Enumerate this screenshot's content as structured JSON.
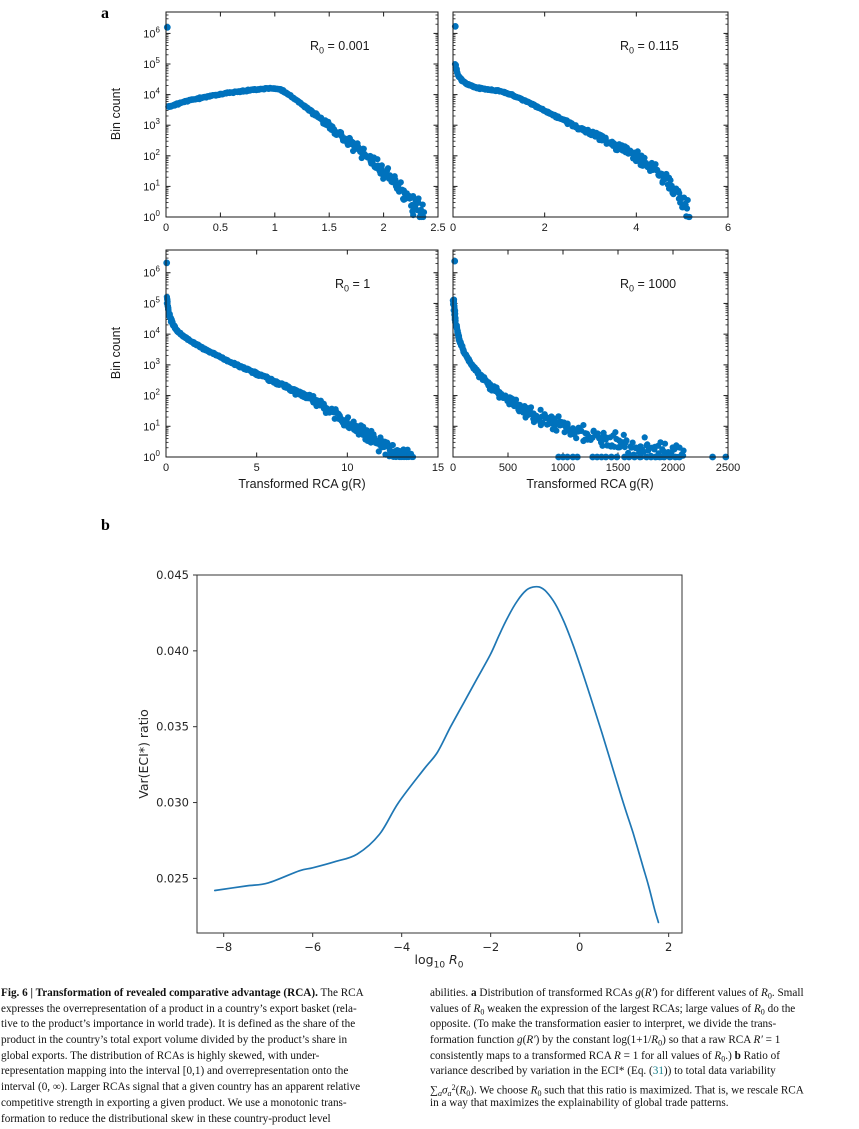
{
  "figure": {
    "panel_a_label": "a",
    "panel_b_label": "b"
  },
  "colors": {
    "scatter": "#0072BD",
    "line": "#1f77b4",
    "axis_a": "#1a1a1a",
    "axis_b": "#333333",
    "link": "#19808c"
  },
  "chart_data": [
    {
      "id": "a1",
      "type": "scatter",
      "ylabel": "Bin count",
      "annotation": [
        {
          "t": "R"
        },
        {
          "t": "0",
          "sub": 1
        },
        {
          "t": " = 0.001"
        }
      ],
      "xlim": [
        0,
        2.5
      ],
      "xticks": [
        {
          "v": 0,
          "l": "0"
        },
        {
          "v": 0.5,
          "l": "0.5"
        },
        {
          "v": 1,
          "l": "1"
        },
        {
          "v": 1.5,
          "l": "1.5"
        },
        {
          "v": 2,
          "l": "2"
        },
        {
          "v": 2.5,
          "l": "2.5"
        }
      ],
      "ylog_max": 6.7,
      "ydecades": [
        0,
        1,
        2,
        3,
        4,
        5,
        6
      ],
      "ytick_labels": true,
      "anchors": [
        [
          0.02,
          3.6
        ],
        [
          0.2,
          3.8
        ],
        [
          0.4,
          3.95
        ],
        [
          0.6,
          4.07
        ],
        [
          0.8,
          4.16
        ],
        [
          0.95,
          4.21
        ],
        [
          1.05,
          4.18
        ],
        [
          1.15,
          3.95
        ],
        [
          1.3,
          3.55
        ],
        [
          1.5,
          2.98
        ],
        [
          1.7,
          2.4
        ],
        [
          1.9,
          1.8
        ],
        [
          2.05,
          1.3
        ],
        [
          2.2,
          0.75
        ],
        [
          2.3,
          0.3
        ],
        [
          2.37,
          0.02
        ]
      ],
      "n": 400,
      "p": 1.0,
      "seed": 11,
      "xjit": 0.004,
      "jitter": {
        "base": 0.03,
        "grow": 0.12,
        "ref": 3.7
      },
      "extras": [
        [
          0.012,
          6.2
        ]
      ],
      "marker_r": 3.1
    },
    {
      "id": "a2",
      "type": "scatter",
      "annotation": [
        {
          "t": "R"
        },
        {
          "t": "0",
          "sub": 1
        },
        {
          "t": " = 0.115"
        }
      ],
      "xlim": [
        0,
        6
      ],
      "xticks": [
        {
          "v": 0,
          "l": "0"
        },
        {
          "v": 2,
          "l": "2"
        },
        {
          "v": 4,
          "l": "4"
        },
        {
          "v": 6,
          "l": "6"
        }
      ],
      "ylog_max": 6.7,
      "ydecades": [
        0,
        1,
        2,
        3,
        4,
        5,
        6
      ],
      "ytick_labels": false,
      "anchors": [
        [
          0.05,
          5.0
        ],
        [
          0.08,
          4.8
        ],
        [
          0.12,
          4.62
        ],
        [
          0.2,
          4.46
        ],
        [
          0.3,
          4.35
        ],
        [
          0.45,
          4.26
        ],
        [
          0.6,
          4.2
        ],
        [
          0.8,
          4.16
        ],
        [
          1.0,
          4.12
        ],
        [
          1.15,
          4.06
        ],
        [
          1.35,
          3.95
        ],
        [
          1.6,
          3.78
        ],
        [
          1.9,
          3.55
        ],
        [
          2.2,
          3.32
        ],
        [
          2.5,
          3.1
        ],
        [
          2.8,
          2.88
        ],
        [
          3.1,
          2.66
        ],
        [
          3.4,
          2.45
        ],
        [
          3.7,
          2.22
        ],
        [
          4.0,
          1.98
        ],
        [
          4.2,
          1.8
        ],
        [
          4.4,
          1.62
        ],
        [
          4.6,
          1.3
        ],
        [
          4.8,
          0.9
        ],
        [
          5.0,
          0.45
        ],
        [
          5.15,
          0.1
        ]
      ],
      "n": 400,
      "p": 1.25,
      "seed": 22,
      "xjit": 0.01,
      "jitter": {
        "base": 0.03,
        "grow": 0.12,
        "ref": 3.4
      },
      "extras": [
        [
          0.05,
          6.23
        ]
      ],
      "marker_r": 3.1
    },
    {
      "id": "a3",
      "type": "scatter",
      "ylabel": "Bin count",
      "xlabel": [
        {
          "t": "Transformed RCA g(R)"
        }
      ],
      "annotation": [
        {
          "t": "R"
        },
        {
          "t": "0",
          "sub": 1
        },
        {
          "t": " = 1"
        }
      ],
      "xlim": [
        0,
        15
      ],
      "xticks": [
        {
          "v": 0,
          "l": "0"
        },
        {
          "v": 5,
          "l": "5"
        },
        {
          "v": 10,
          "l": "10"
        },
        {
          "v": 15,
          "l": "15"
        }
      ],
      "ylog_max": 6.74,
      "ydecades": [
        0,
        1,
        2,
        3,
        4,
        5,
        6
      ],
      "ytick_labels": true,
      "anchors": [
        [
          0.04,
          5.2
        ],
        [
          0.08,
          4.95
        ],
        [
          0.15,
          4.7
        ],
        [
          0.25,
          4.5
        ],
        [
          0.4,
          4.3
        ],
        [
          0.6,
          4.12
        ],
        [
          0.85,
          3.98
        ],
        [
          1.1,
          3.88
        ],
        [
          1.5,
          3.72
        ],
        [
          2.0,
          3.55
        ],
        [
          2.5,
          3.4
        ],
        [
          3.0,
          3.25
        ],
        [
          3.5,
          3.1
        ],
        [
          4.0,
          2.97
        ],
        [
          4.5,
          2.85
        ],
        [
          5.0,
          2.72
        ],
        [
          5.5,
          2.58
        ],
        [
          6.0,
          2.45
        ],
        [
          6.5,
          2.32
        ],
        [
          7.0,
          2.18
        ],
        [
          7.5,
          2.05
        ],
        [
          8.0,
          1.9
        ],
        [
          8.5,
          1.72
        ],
        [
          9.0,
          1.52
        ],
        [
          9.5,
          1.3
        ],
        [
          10.0,
          1.1
        ],
        [
          10.5,
          0.92
        ],
        [
          11.0,
          0.75
        ],
        [
          11.5,
          0.55
        ],
        [
          12.0,
          0.35
        ],
        [
          12.5,
          0.18
        ],
        [
          13.0,
          0.05
        ],
        [
          13.6,
          0.0
        ]
      ],
      "n": 430,
      "p": 1.35,
      "seed": 33,
      "xjit": 0.03,
      "jitter": {
        "base": 0.035,
        "grow": 0.11,
        "ref": 3.0
      },
      "extras": [
        [
          0.04,
          6.32
        ]
      ],
      "marker_r": 3.1
    },
    {
      "id": "a4",
      "type": "scatter",
      "xlabel": [
        {
          "t": "Transformed RCA g(R)"
        }
      ],
      "annotation": [
        {
          "t": "R"
        },
        {
          "t": "0",
          "sub": 1
        },
        {
          "t": " = 1000"
        }
      ],
      "xlim": [
        0,
        2500
      ],
      "xticks": [
        {
          "v": 0,
          "l": "0"
        },
        {
          "v": 500,
          "l": "500"
        },
        {
          "v": 1000,
          "l": "1000"
        },
        {
          "v": 1500,
          "l": "1500"
        },
        {
          "v": 2000,
          "l": "2000"
        },
        {
          "v": 2500,
          "l": "2500"
        }
      ],
      "ylog_max": 6.74,
      "ydecades": [
        0,
        1,
        2,
        3,
        4,
        5,
        6
      ],
      "ytick_labels": false,
      "anchors": [
        [
          5,
          5.1
        ],
        [
          10,
          4.85
        ],
        [
          20,
          4.5
        ],
        [
          35,
          4.15
        ],
        [
          55,
          3.85
        ],
        [
          80,
          3.6
        ],
        [
          110,
          3.35
        ],
        [
          150,
          3.1
        ],
        [
          200,
          2.85
        ],
        [
          260,
          2.6
        ],
        [
          330,
          2.35
        ],
        [
          400,
          2.15
        ],
        [
          480,
          1.95
        ],
        [
          560,
          1.75
        ],
        [
          650,
          1.55
        ],
        [
          750,
          1.35
        ],
        [
          850,
          1.2
        ],
        [
          950,
          1.05
        ],
        [
          1100,
          0.85
        ],
        [
          1250,
          0.68
        ],
        [
          1400,
          0.52
        ],
        [
          1550,
          0.4
        ],
        [
          1700,
          0.28
        ],
        [
          1850,
          0.15
        ],
        [
          2000,
          0.05
        ],
        [
          2100,
          0.0
        ]
      ],
      "n": 340,
      "p": 2.0,
      "seed": 44,
      "xjit": 6,
      "jitter": {
        "base": 0.05,
        "grow": 0.14,
        "ref": 3.0
      },
      "extras": [
        [
          15,
          6.38
        ],
        [
          960,
          0
        ],
        [
          1000,
          0
        ],
        [
          1040,
          0
        ],
        [
          1090,
          0
        ],
        [
          1130,
          0
        ],
        [
          1270,
          0
        ],
        [
          1310,
          0
        ],
        [
          1350,
          0
        ],
        [
          1390,
          0
        ],
        [
          1440,
          0
        ],
        [
          1490,
          0
        ],
        [
          1560,
          0
        ],
        [
          1600,
          0
        ],
        [
          1650,
          0
        ],
        [
          1700,
          0
        ],
        [
          1760,
          0
        ],
        [
          1800,
          0
        ],
        [
          1840,
          0
        ],
        [
          1880,
          0
        ],
        [
          1920,
          0
        ],
        [
          1970,
          0
        ],
        [
          2020,
          0
        ],
        [
          2060,
          0
        ],
        [
          2360,
          0
        ],
        [
          2480,
          0
        ]
      ],
      "marker_r": 3.1
    },
    {
      "id": "b",
      "type": "line",
      "ylabel": "Var(ECI*) ratio",
      "xlabel": [
        {
          "t": "log"
        },
        {
          "t": "10",
          "sub": 1
        },
        {
          "t": " "
        },
        {
          "t": "R",
          "i": 1
        },
        {
          "t": "0",
          "sub": 1
        }
      ],
      "xlim": [
        -8.6,
        2.3
      ],
      "ylim": [
        0.0214,
        0.045
      ],
      "xticks": [
        {
          "v": -8,
          "l": "−8"
        },
        {
          "v": -6,
          "l": "−6"
        },
        {
          "v": -4,
          "l": "−4"
        },
        {
          "v": -2,
          "l": "−2"
        },
        {
          "v": 0,
          "l": "0"
        },
        {
          "v": 2,
          "l": "2"
        }
      ],
      "yticks": [
        {
          "v": 0.025,
          "l": "0.025"
        },
        {
          "v": 0.03,
          "l": "0.030"
        },
        {
          "v": 0.035,
          "l": "0.035"
        },
        {
          "v": 0.04,
          "l": "0.040"
        },
        {
          "v": 0.045,
          "l": "0.045"
        }
      ],
      "line": [
        [
          -8.2,
          0.0242
        ],
        [
          -7.5,
          0.0245
        ],
        [
          -7.0,
          0.0247
        ],
        [
          -6.3,
          0.0255
        ],
        [
          -6.0,
          0.0257
        ],
        [
          -5.5,
          0.0261
        ],
        [
          -5.0,
          0.0266
        ],
        [
          -4.5,
          0.0279
        ],
        [
          -4.07,
          0.03
        ],
        [
          -3.5,
          0.0322
        ],
        [
          -3.2,
          0.0333
        ],
        [
          -2.9,
          0.035
        ],
        [
          -2.6,
          0.0366
        ],
        [
          -2.3,
          0.0382
        ],
        [
          -2.0,
          0.0398
        ],
        [
          -1.8,
          0.0411
        ],
        [
          -1.6,
          0.0423
        ],
        [
          -1.4,
          0.0433
        ],
        [
          -1.2,
          0.044
        ],
        [
          -1.05,
          0.0442
        ],
        [
          -0.9,
          0.0442
        ],
        [
          -0.75,
          0.0439
        ],
        [
          -0.55,
          0.0431
        ],
        [
          -0.35,
          0.0419
        ],
        [
          -0.15,
          0.0404
        ],
        [
          0.05,
          0.0387
        ],
        [
          0.25,
          0.0369
        ],
        [
          0.5,
          0.0346
        ],
        [
          0.75,
          0.0322
        ],
        [
          1.0,
          0.0298
        ],
        [
          1.2,
          0.028
        ],
        [
          1.4,
          0.026
        ],
        [
          1.55,
          0.0245
        ],
        [
          1.68,
          0.023
        ],
        [
          1.77,
          0.0221
        ]
      ],
      "line_width": 1.7
    }
  ],
  "caption": {
    "left_lines": [
      [
        {
          "t": "Fig. 6 | Transformation of revealed comparative advantage (RCA).",
          "b": 1
        },
        {
          "t": " The RCA"
        }
      ],
      [
        {
          "t": "expresses the overrepresentation of a product in a country’s export basket (rela-"
        }
      ],
      [
        {
          "t": "tive to the product’s importance in world trade). It is defined as the share of the"
        }
      ],
      [
        {
          "t": "product in the country’s total export volume divided by the product’s share in"
        }
      ],
      [
        {
          "t": "global exports. The distribution of RCAs is highly skewed, with under-"
        }
      ],
      [
        {
          "t": "representation mapping into the interval [0,1) and overrepresentation onto the"
        }
      ],
      [
        {
          "t": "interval (0, ∞). Larger RCAs signal that a given country has an apparent relative"
        }
      ],
      [
        {
          "t": "competitive strength in exporting a given product. We use a monotonic trans-"
        }
      ],
      [
        {
          "t": "formation to reduce the distributional skew in these country-product level"
        }
      ]
    ],
    "right_lines": [
      [
        {
          "t": "abilities. "
        },
        {
          "t": "a",
          "b": 1
        },
        {
          "t": " Distribution of transformed RCAs "
        },
        {
          "t": "g",
          "i": 1
        },
        {
          "t": "("
        },
        {
          "t": "R′",
          "i": 1
        },
        {
          "t": ") for different values of "
        },
        {
          "t": "R",
          "i": 1
        },
        {
          "t": "0",
          "sub": 1
        },
        {
          "t": ". Small"
        }
      ],
      [
        {
          "t": "values of "
        },
        {
          "t": "R",
          "i": 1
        },
        {
          "t": "0",
          "sub": 1
        },
        {
          "t": " weaken the expression of the largest RCAs; large values of "
        },
        {
          "t": "R",
          "i": 1
        },
        {
          "t": "0",
          "sub": 1
        },
        {
          "t": " do the"
        }
      ],
      [
        {
          "t": "opposite. (To make the transformation easier to interpret, we divide the trans-"
        }
      ],
      [
        {
          "t": "formation function "
        },
        {
          "t": "g",
          "i": 1
        },
        {
          "t": "("
        },
        {
          "t": "R′",
          "i": 1
        },
        {
          "t": ") by the constant log(1+1/"
        },
        {
          "t": "R",
          "i": 1
        },
        {
          "t": "0",
          "sub": 1
        },
        {
          "t": ") so that a raw RCA "
        },
        {
          "t": "R′",
          "i": 1
        },
        {
          "t": " = 1"
        }
      ],
      [
        {
          "t": "consistently maps to a transformed RCA "
        },
        {
          "t": "R",
          "i": 1
        },
        {
          "t": " = 1 for all values of "
        },
        {
          "t": "R",
          "i": 1
        },
        {
          "t": "0",
          "sub": 1
        },
        {
          "t": ".) "
        },
        {
          "t": "b",
          "b": 1
        },
        {
          "t": " Ratio of"
        }
      ],
      [
        {
          "t": "variance described by variation in the ECI* (Eq. ("
        },
        {
          "t": "31",
          "link": 1
        },
        {
          "t": ")) to total data variability"
        }
      ],
      [
        {
          "t": "∑"
        },
        {
          "t": "a",
          "sub": 1,
          "i": 1
        },
        {
          "t": "σ",
          "i": 1
        },
        {
          "t": "a",
          "sub": 1,
          "i": 1
        },
        {
          "t": "2",
          "sup": 1
        },
        {
          "t": "("
        },
        {
          "t": "R",
          "i": 1
        },
        {
          "t": "0",
          "sub": 1
        },
        {
          "t": "). We choose "
        },
        {
          "t": "R",
          "i": 1
        },
        {
          "t": "0",
          "sub": 1
        },
        {
          "t": " such that this ratio is maximized. That is, we rescale RCA"
        }
      ],
      [
        {
          "t": "in a way that maximizes the explainability of global trade patterns."
        }
      ]
    ]
  }
}
